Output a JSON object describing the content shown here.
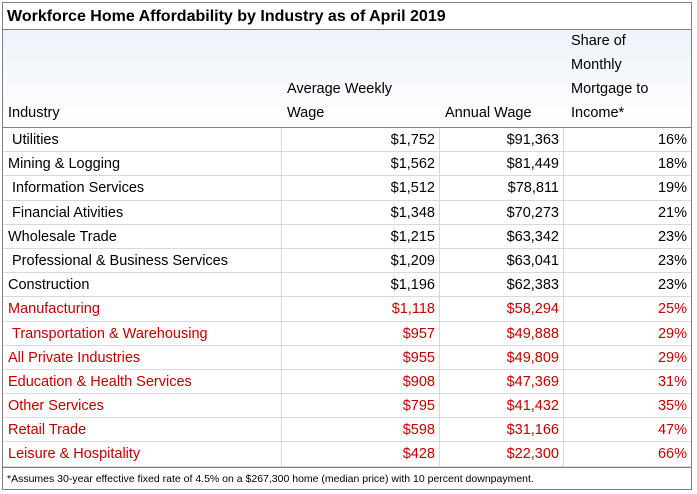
{
  "title": "Workforce Home Affordability by Industry as of April 2019",
  "headers": {
    "industry": [
      "Industry"
    ],
    "weekly": [
      "Average Weekly",
      "Wage"
    ],
    "annual": [
      "Annual Wage"
    ],
    "share": [
      "Share of",
      "Monthly",
      "Mortgage to",
      "Income*"
    ]
  },
  "rows": [
    {
      "industry": "Utilities",
      "weekly": "$1,752",
      "annual": "$91,363",
      "share": "16%",
      "indent": true,
      "highlight": false
    },
    {
      "industry": "Mining & Logging",
      "weekly": "$1,562",
      "annual": "$81,449",
      "share": "18%",
      "indent": false,
      "highlight": false
    },
    {
      "industry": "Information Services",
      "weekly": "$1,512",
      "annual": "$78,811",
      "share": "19%",
      "indent": true,
      "highlight": false
    },
    {
      "industry": "Financial Ativities",
      "weekly": "$1,348",
      "annual": "$70,273",
      "share": "21%",
      "indent": true,
      "highlight": false
    },
    {
      "industry": "Wholesale Trade",
      "weekly": "$1,215",
      "annual": "$63,342",
      "share": "23%",
      "indent": false,
      "highlight": false
    },
    {
      "industry": "Professional & Business Services",
      "weekly": "$1,209",
      "annual": "$63,041",
      "share": "23%",
      "indent": true,
      "highlight": false
    },
    {
      "industry": "Construction",
      "weekly": "$1,196",
      "annual": "$62,383",
      "share": "23%",
      "indent": false,
      "highlight": false
    },
    {
      "industry": "Manufacturing",
      "weekly": "$1,118",
      "annual": "$58,294",
      "share": "25%",
      "indent": false,
      "highlight": true
    },
    {
      "industry": "Transportation & Warehousing",
      "weekly": "$957",
      "annual": "$49,888",
      "share": "29%",
      "indent": true,
      "highlight": true
    },
    {
      "industry": "All Private Industries",
      "weekly": "$955",
      "annual": "$49,809",
      "share": "29%",
      "indent": false,
      "highlight": true
    },
    {
      "industry": "Education & Health Services",
      "weekly": "$908",
      "annual": "$47,369",
      "share": "31%",
      "indent": false,
      "highlight": true
    },
    {
      "industry": "Other Services",
      "weekly": "$795",
      "annual": "$41,432",
      "share": "35%",
      "indent": false,
      "highlight": true
    },
    {
      "industry": "Retail Trade",
      "weekly": "$598",
      "annual": "$31,166",
      "share": "47%",
      "indent": false,
      "highlight": true
    },
    {
      "industry": "Leisure & Hospitality",
      "weekly": "$428",
      "annual": "$22,300",
      "share": "66%",
      "indent": false,
      "highlight": true
    }
  ],
  "colors": {
    "highlight": "#c00000",
    "text": "#000000"
  },
  "footnote": "*Assumes 30-year effective fixed rate of 4.5% on a $267,300 home (median price) with 10 percent downpayment."
}
